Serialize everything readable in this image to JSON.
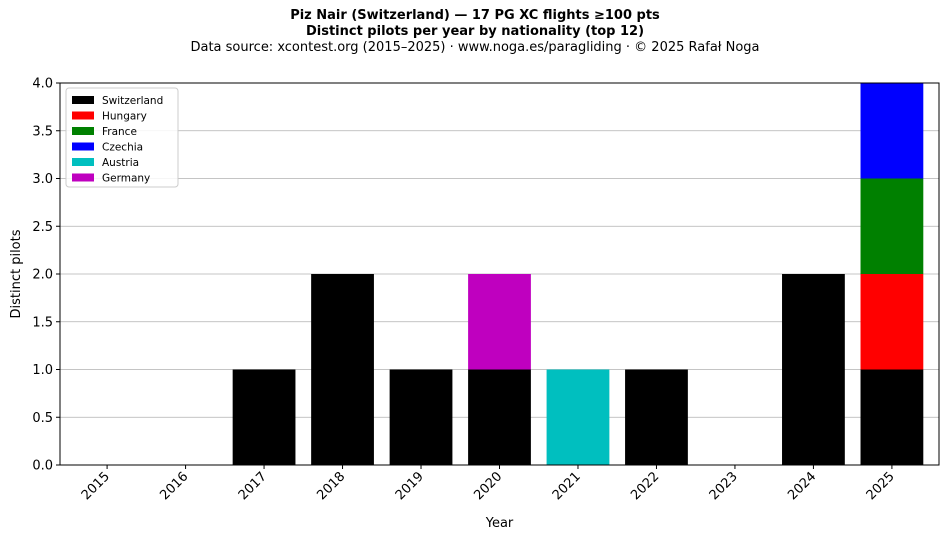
{
  "chart_data": {
    "type": "bar",
    "stacked": true,
    "title": "Piz Nair (Switzerland)  —  17 PG XC flights ≥100 pts",
    "subtitle": "Distinct pilots per year by nationality (top 12)",
    "source_line": "Data source: xcontest.org (2015–2025)  ·  www.noga.es/paragliding  ·  © 2025 Rafał Noga",
    "xlabel": "Year",
    "ylabel": "Distinct pilots",
    "ylim": [
      0,
      4
    ],
    "yticks": [
      "0.0",
      "0.5",
      "1.0",
      "1.5",
      "2.0",
      "2.5",
      "3.0",
      "3.5",
      "4.0"
    ],
    "ytick_values": [
      0,
      0.5,
      1.0,
      1.5,
      2.0,
      2.5,
      3.0,
      3.5,
      4.0
    ],
    "grid": "horizontal",
    "legend_position": "top-left",
    "categories": [
      "2015",
      "2016",
      "2017",
      "2018",
      "2019",
      "2020",
      "2021",
      "2022",
      "2023",
      "2024",
      "2025"
    ],
    "series": [
      {
        "name": "Switzerland",
        "color": "#000000",
        "values": [
          0,
          0,
          1,
          2,
          1,
          1,
          0,
          1,
          0,
          2,
          1
        ]
      },
      {
        "name": "Hungary",
        "color": "#ff0000",
        "values": [
          0,
          0,
          0,
          0,
          0,
          0,
          0,
          0,
          0,
          0,
          1
        ]
      },
      {
        "name": "France",
        "color": "#008000",
        "values": [
          0,
          0,
          0,
          0,
          0,
          0,
          0,
          0,
          0,
          0,
          1
        ]
      },
      {
        "name": "Czechia",
        "color": "#0000ff",
        "values": [
          0,
          0,
          0,
          0,
          0,
          0,
          0,
          0,
          0,
          0,
          1
        ]
      },
      {
        "name": "Austria",
        "color": "#00bfbf",
        "values": [
          0,
          0,
          0,
          0,
          0,
          0,
          1,
          0,
          0,
          0,
          0
        ]
      },
      {
        "name": "Germany",
        "color": "#bf00bf",
        "values": [
          0,
          0,
          0,
          0,
          0,
          1,
          0,
          0,
          0,
          0,
          0
        ]
      }
    ]
  }
}
